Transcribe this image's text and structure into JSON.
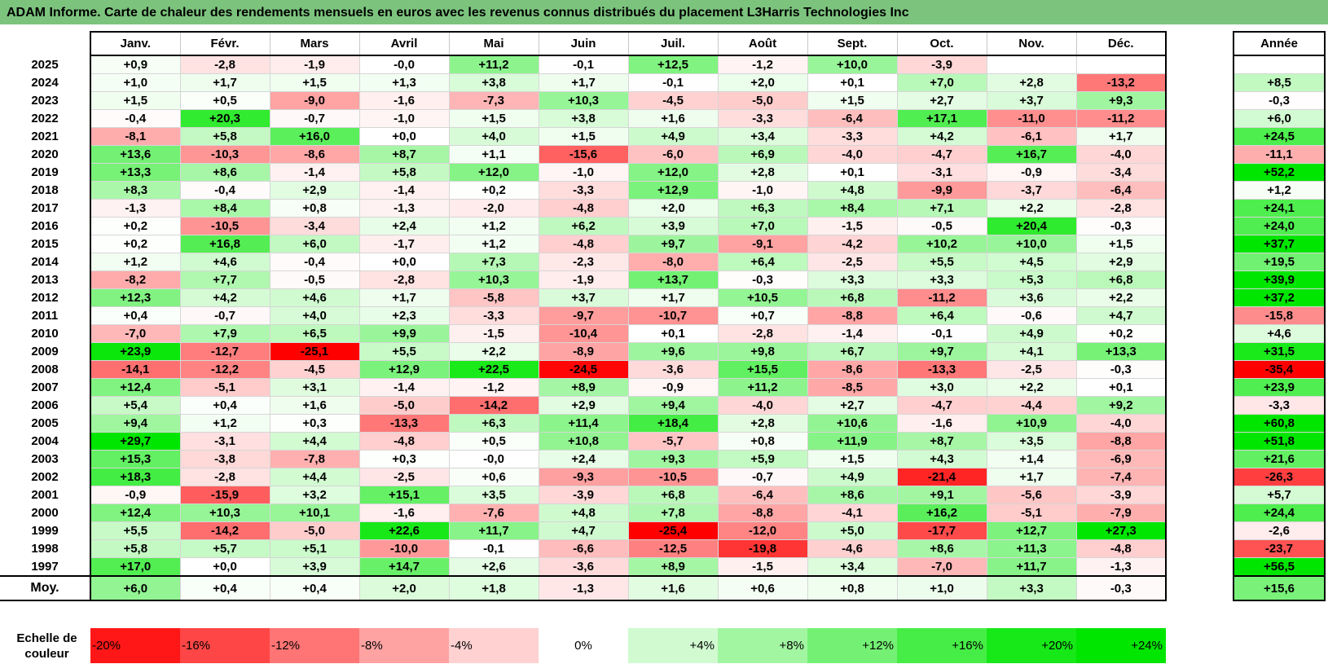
{
  "title": "ADAM Informe. Carte de chaleur des rendements mensuels en euros avec les revenus connus distribués du placement L3Harris Technologies Inc",
  "chart_data": {
    "type": "heatmap",
    "months": [
      "Janv.",
      "Févr.",
      "Mars",
      "Avril",
      "Mai",
      "Juin",
      "Juil.",
      "Août",
      "Sept.",
      "Oct.",
      "Nov.",
      "Déc."
    ],
    "year_header": "Année",
    "rows": [
      {
        "year": "2025",
        "values": [
          "+0,9",
          "-2,8",
          "-1,9",
          "-0,0",
          "+11,2",
          "-0,1",
          "+12,5",
          "-1,2",
          "+10,0",
          "-3,9",
          "",
          ""
        ],
        "annual": ""
      },
      {
        "year": "2024",
        "values": [
          "+1,0",
          "+1,7",
          "+1,5",
          "+1,3",
          "+3,8",
          "+1,7",
          "-0,1",
          "+2,0",
          "+0,1",
          "+7,0",
          "+2,8",
          "-13,2"
        ],
        "annual": "+8,5"
      },
      {
        "year": "2023",
        "values": [
          "+1,5",
          "+0,5",
          "-9,0",
          "-1,6",
          "-7,3",
          "+10,3",
          "-4,5",
          "-5,0",
          "+1,5",
          "+2,7",
          "+3,7",
          "+9,3"
        ],
        "annual": "-0,3"
      },
      {
        "year": "2022",
        "values": [
          "-0,4",
          "+20,3",
          "-0,7",
          "-1,0",
          "+1,5",
          "+3,8",
          "+1,6",
          "-3,3",
          "-6,4",
          "+17,1",
          "-11,0",
          "-11,2"
        ],
        "annual": "+6,0"
      },
      {
        "year": "2021",
        "values": [
          "-8,1",
          "+5,8",
          "+16,0",
          "+0,0",
          "+4,0",
          "+1,5",
          "+4,9",
          "+3,4",
          "-3,3",
          "+4,2",
          "-6,1",
          "+1,7"
        ],
        "annual": "+24,5"
      },
      {
        "year": "2020",
        "values": [
          "+13,6",
          "-10,3",
          "-8,6",
          "+8,7",
          "+1,1",
          "-15,6",
          "-6,0",
          "+6,9",
          "-4,0",
          "-4,7",
          "+16,7",
          "-4,0"
        ],
        "annual": "-11,1"
      },
      {
        "year": "2019",
        "values": [
          "+13,3",
          "+8,6",
          "-1,4",
          "+5,8",
          "+12,0",
          "-1,0",
          "+12,0",
          "+2,8",
          "+0,1",
          "-3,1",
          "-0,9",
          "-3,4"
        ],
        "annual": "+52,2"
      },
      {
        "year": "2018",
        "values": [
          "+8,3",
          "-0,4",
          "+2,9",
          "-1,4",
          "+0,2",
          "-3,3",
          "+12,9",
          "-1,0",
          "+4,8",
          "-9,9",
          "-3,7",
          "-6,4"
        ],
        "annual": "+1,2"
      },
      {
        "year": "2017",
        "values": [
          "-1,3",
          "+8,4",
          "+0,8",
          "-1,3",
          "-2,0",
          "-4,8",
          "+2,0",
          "+6,3",
          "+8,4",
          "+7,1",
          "+2,2",
          "-2,8"
        ],
        "annual": "+24,1"
      },
      {
        "year": "2016",
        "values": [
          "+0,2",
          "-10,5",
          "-3,4",
          "+2,4",
          "+1,2",
          "+6,2",
          "+3,9",
          "+7,0",
          "-1,5",
          "-0,5",
          "+20,4",
          "-0,3"
        ],
        "annual": "+24,0"
      },
      {
        "year": "2015",
        "values": [
          "+0,2",
          "+16,8",
          "+6,0",
          "-1,7",
          "+1,2",
          "-4,8",
          "+9,7",
          "-9,1",
          "-4,2",
          "+10,2",
          "+10,0",
          "+1,5"
        ],
        "annual": "+37,7"
      },
      {
        "year": "2014",
        "values": [
          "+1,2",
          "+4,6",
          "-0,4",
          "+0,0",
          "+7,3",
          "-2,3",
          "-8,0",
          "+6,4",
          "-2,5",
          "+5,5",
          "+4,5",
          "+2,9"
        ],
        "annual": "+19,5"
      },
      {
        "year": "2013",
        "values": [
          "-8,2",
          "+7,7",
          "-0,5",
          "-2,8",
          "+10,3",
          "-1,9",
          "+13,7",
          "-0,3",
          "+3,3",
          "+3,3",
          "+5,3",
          "+6,8"
        ],
        "annual": "+39,9"
      },
      {
        "year": "2012",
        "values": [
          "+12,3",
          "+4,2",
          "+4,6",
          "+1,7",
          "-5,8",
          "+3,7",
          "+1,7",
          "+10,5",
          "+6,8",
          "-11,2",
          "+3,6",
          "+2,2"
        ],
        "annual": "+37,2"
      },
      {
        "year": "2011",
        "values": [
          "+0,4",
          "-0,7",
          "+4,0",
          "+2,3",
          "-3,3",
          "-9,7",
          "-10,7",
          "+0,7",
          "-8,8",
          "+6,4",
          "-0,6",
          "+4,7"
        ],
        "annual": "-15,8"
      },
      {
        "year": "2010",
        "values": [
          "-7,0",
          "+7,9",
          "+6,5",
          "+9,9",
          "-1,5",
          "-10,4",
          "+0,1",
          "-2,8",
          "-1,4",
          "-0,1",
          "+4,9",
          "+0,2"
        ],
        "annual": "+4,6"
      },
      {
        "year": "2009",
        "values": [
          "+23,9",
          "-12,7",
          "-25,1",
          "+5,5",
          "+2,2",
          "-8,9",
          "+9,6",
          "+9,8",
          "+6,7",
          "+9,7",
          "+4,1",
          "+13,3"
        ],
        "annual": "+31,5"
      },
      {
        "year": "2008",
        "values": [
          "-14,1",
          "-12,2",
          "-4,5",
          "+12,9",
          "+22,5",
          "-24,5",
          "-3,6",
          "+15,5",
          "-8,6",
          "-13,3",
          "-2,5",
          "-0,3"
        ],
        "annual": "-35,4"
      },
      {
        "year": "2007",
        "values": [
          "+12,4",
          "-5,1",
          "+3,1",
          "-1,4",
          "-1,2",
          "+8,9",
          "-0,9",
          "+11,2",
          "-8,5",
          "+3,0",
          "+2,2",
          "+0,1"
        ],
        "annual": "+23,9"
      },
      {
        "year": "2006",
        "values": [
          "+5,4",
          "+0,4",
          "+1,6",
          "-5,0",
          "-14,2",
          "+2,9",
          "+9,4",
          "-4,0",
          "+2,7",
          "-4,7",
          "-4,4",
          "+9,2"
        ],
        "annual": "-3,3"
      },
      {
        "year": "2005",
        "values": [
          "+9,4",
          "+1,2",
          "+0,3",
          "-13,3",
          "+6,3",
          "+11,4",
          "+18,4",
          "+2,8",
          "+10,6",
          "-1,6",
          "+10,9",
          "-4,0"
        ],
        "annual": "+60,8"
      },
      {
        "year": "2004",
        "values": [
          "+29,7",
          "-3,1",
          "+4,4",
          "-4,8",
          "+0,5",
          "+10,8",
          "-5,7",
          "+0,8",
          "+11,9",
          "+8,7",
          "+3,5",
          "-8,8"
        ],
        "annual": "+51,8"
      },
      {
        "year": "2003",
        "values": [
          "+15,3",
          "-3,8",
          "-7,8",
          "+0,3",
          "-0,0",
          "+2,4",
          "+9,3",
          "+5,9",
          "+1,5",
          "+4,3",
          "+1,4",
          "-6,9"
        ],
        "annual": "+21,6"
      },
      {
        "year": "2002",
        "values": [
          "+18,3",
          "-2,8",
          "+4,4",
          "-2,5",
          "+0,6",
          "-9,3",
          "-10,5",
          "-0,7",
          "+4,9",
          "-21,4",
          "+1,7",
          "-7,4"
        ],
        "annual": "-26,3"
      },
      {
        "year": "2001",
        "values": [
          "-0,9",
          "-15,9",
          "+3,2",
          "+15,1",
          "+3,5",
          "-3,9",
          "+6,8",
          "-6,4",
          "+8,6",
          "+9,1",
          "-5,6",
          "-3,9"
        ],
        "annual": "+5,7"
      },
      {
        "year": "2000",
        "values": [
          "+12,4",
          "+10,3",
          "+10,1",
          "-1,6",
          "-7,6",
          "+4,8",
          "+7,8",
          "-8,8",
          "-4,1",
          "+16,2",
          "-5,1",
          "-7,9"
        ],
        "annual": "+24,4"
      },
      {
        "year": "1999",
        "values": [
          "+5,5",
          "-14,2",
          "-5,0",
          "+22,6",
          "+11,7",
          "+4,7",
          "-25,4",
          "-12,0",
          "+5,0",
          "-17,7",
          "+12,7",
          "+27,3"
        ],
        "annual": "-2,6"
      },
      {
        "year": "1998",
        "values": [
          "+5,8",
          "+5,7",
          "+5,1",
          "-10,0",
          "-0,1",
          "-6,6",
          "-12,5",
          "-19,8",
          "-4,6",
          "+8,6",
          "+11,3",
          "-4,8"
        ],
        "annual": "-23,7"
      },
      {
        "year": "1997",
        "values": [
          "+17,0",
          "+0,0",
          "+3,9",
          "+14,7",
          "+2,6",
          "-3,6",
          "+8,9",
          "-1,5",
          "+3,4",
          "-7,0",
          "+11,7",
          "-1,3"
        ],
        "annual": "+56,5"
      }
    ],
    "average": {
      "label": "Moy.",
      "values": [
        "+6,0",
        "+0,4",
        "+0,4",
        "+2,0",
        "+1,8",
        "-1,3",
        "+1,6",
        "+0,6",
        "+0,8",
        "+1,0",
        "+3,3",
        "-0,3"
      ],
      "annual": "+15,6"
    },
    "legend": {
      "label_line1": "Echelle de",
      "label_line2": "couleur",
      "stops": [
        {
          "label": "-20%",
          "value": -20
        },
        {
          "label": "-16%",
          "value": -16
        },
        {
          "label": "-12%",
          "value": -12
        },
        {
          "label": "-8%",
          "value": -8
        },
        {
          "label": "-4%",
          "value": -4
        },
        {
          "label": "0%",
          "value": 0
        },
        {
          "label": "+4%",
          "value": 4
        },
        {
          "label": "+8%",
          "value": 8
        },
        {
          "label": "+12%",
          "value": 12
        },
        {
          "label": "+16%",
          "value": 16
        },
        {
          "label": "+20%",
          "value": 20
        },
        {
          "label": "+24%",
          "value": 24
        }
      ]
    },
    "colors": {
      "negative": "#ff0000",
      "neutral": "#ffffff",
      "positive": "#00e600"
    }
  }
}
